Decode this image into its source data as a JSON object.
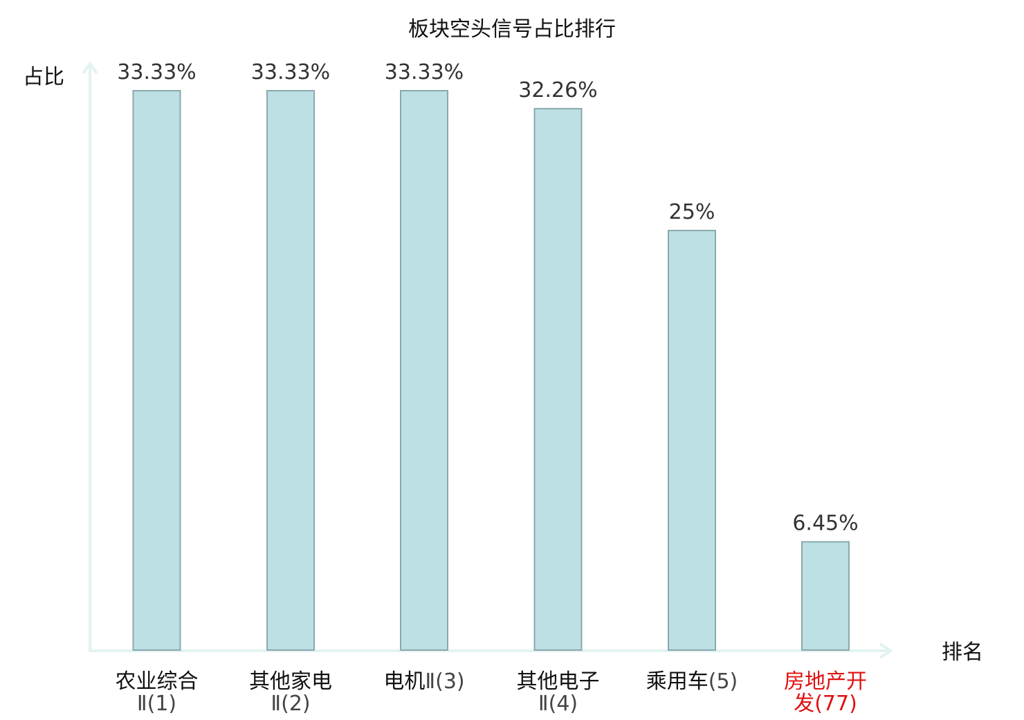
{
  "chart_data": {
    "type": "bar",
    "title": "板块空头信号占比排行",
    "ylabel": "占比",
    "xlabel": "排名",
    "ylim": [
      0,
      35
    ],
    "grid": false,
    "categories": [
      {
        "line1": "农业综合",
        "line2": "Ⅱ(1)",
        "highlight": false
      },
      {
        "line1": "其他家电",
        "line2": "Ⅱ(2)",
        "highlight": false
      },
      {
        "line1": "电机",
        "line2": "Ⅱ(3)",
        "highlight": false
      },
      {
        "line1": "其他电子",
        "line2": "Ⅱ(4)",
        "highlight": false
      },
      {
        "line1": "乘用车",
        "line2": "(5)",
        "highlight": false
      },
      {
        "line1": "房地产开",
        "line2": "发(77)",
        "highlight": true
      }
    ],
    "values": [
      33.33,
      33.33,
      33.33,
      32.26,
      25,
      6.45
    ],
    "value_labels": [
      "33.33%",
      "33.33%",
      "33.33%",
      "32.26%",
      "25%",
      "6.45%"
    ]
  },
  "colors": {
    "bar_fill": "#bce0e3",
    "bar_stroke": "#8aa9ab",
    "axis": "#e2f3f1",
    "highlight_text": "#e01010",
    "label_text": "#111111",
    "rank_text": "#444444"
  }
}
